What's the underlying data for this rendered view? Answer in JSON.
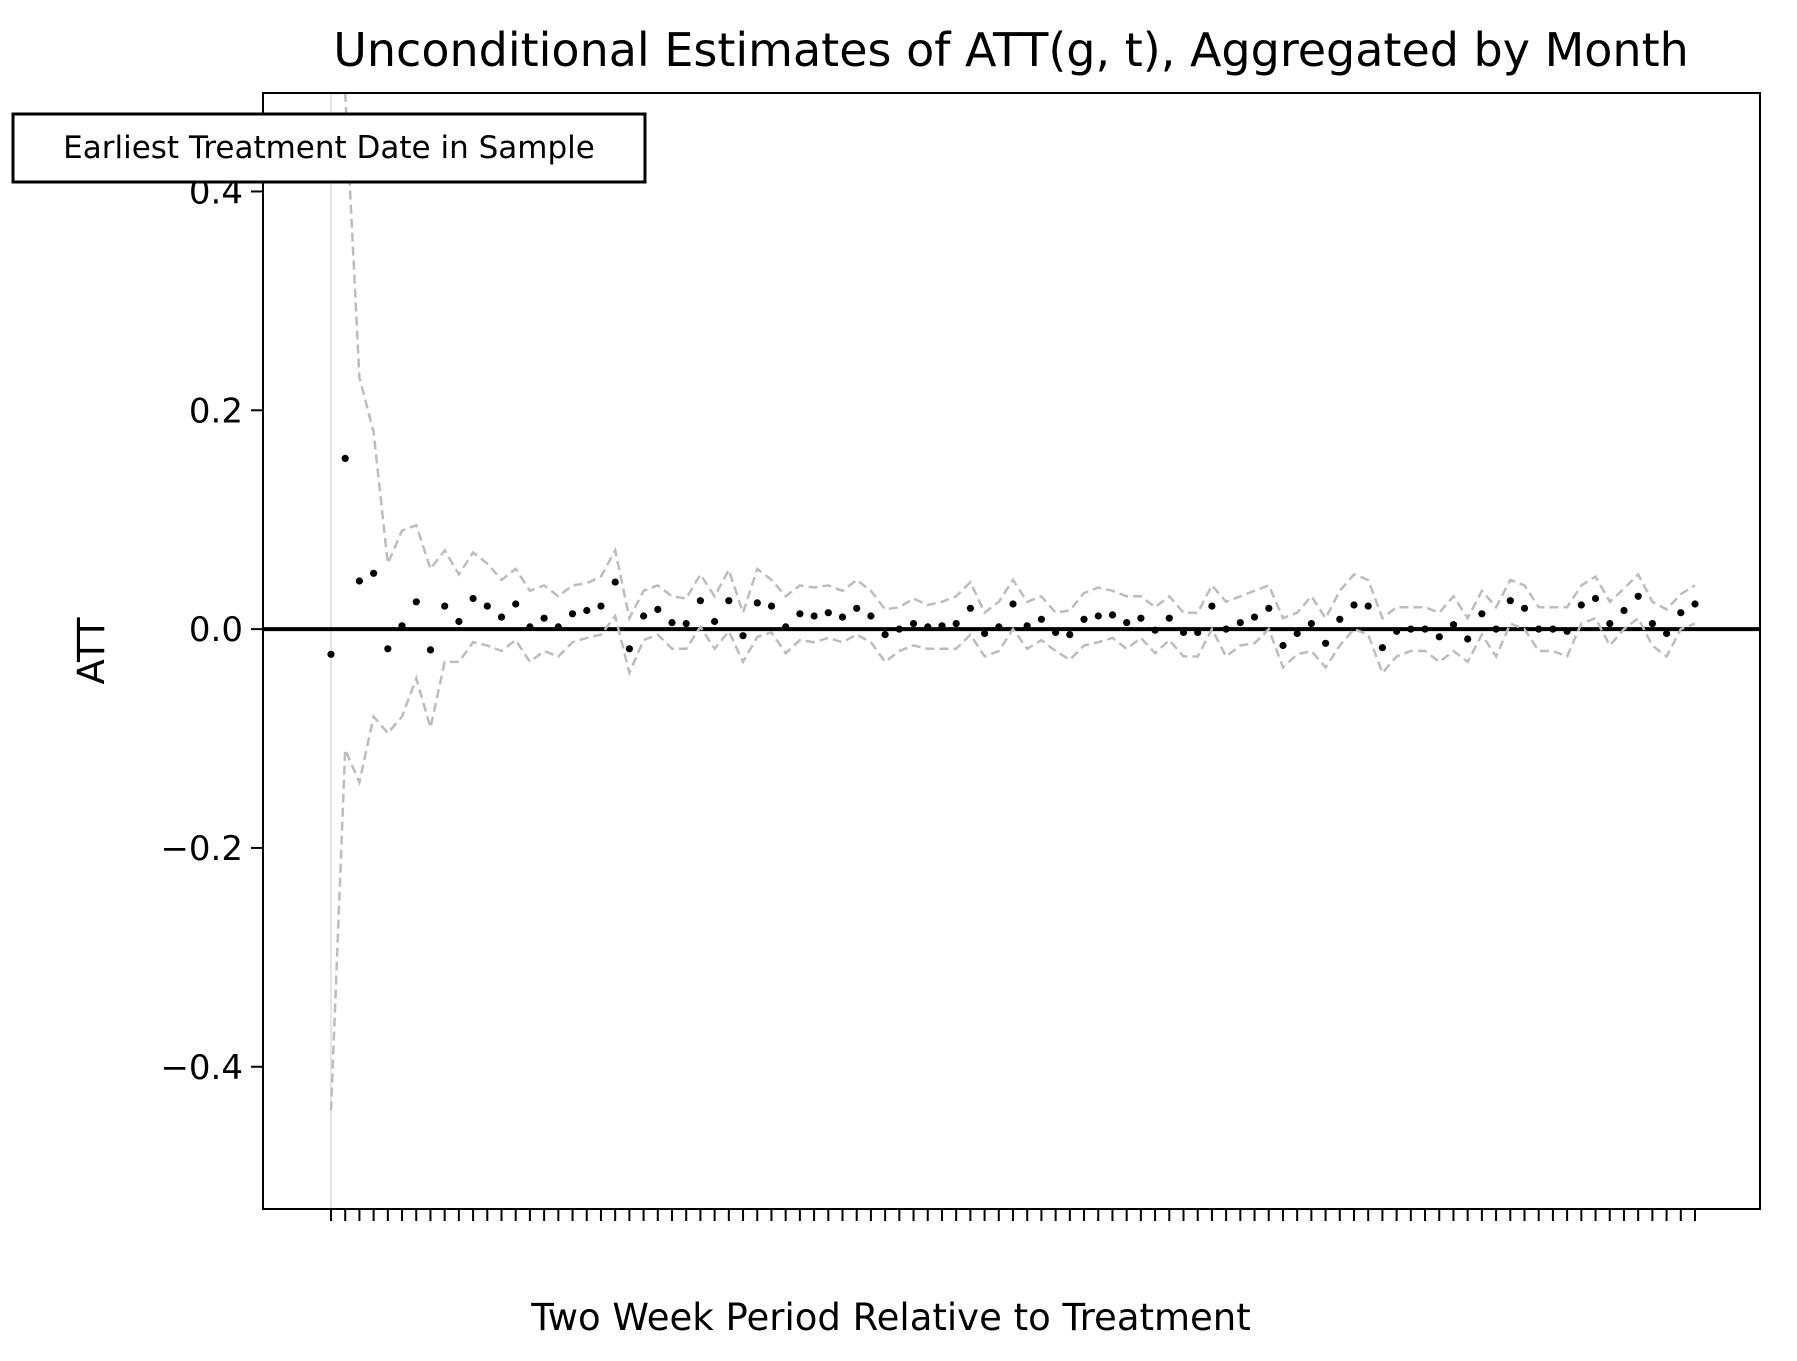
{
  "chart_data": {
    "type": "scatter",
    "title": "Unconditional Estimates of ATT(g, t), Aggregated by Month",
    "xlabel": "Two Week Period Relative to Treatment",
    "ylabel": "ATT",
    "ylim": [
      -0.53,
      0.49
    ],
    "yticks": [
      -0.4,
      -0.2,
      0.0,
      0.2,
      0.4
    ],
    "ytick_labels": [
      "−0.4",
      "−0.2",
      "0.0",
      "0.2",
      "0.4"
    ],
    "grid": false,
    "reference_line_y": 0.0,
    "annotation": "Earliest Treatment Date in Sample",
    "x_index": [
      1,
      2,
      3,
      4,
      5,
      6,
      7,
      8,
      9,
      10,
      11,
      12,
      13,
      14,
      15,
      16,
      17,
      18,
      19,
      20,
      21,
      22,
      23,
      24,
      25,
      26,
      27,
      28,
      29,
      30,
      31,
      32,
      33,
      34,
      35,
      36,
      37,
      38,
      39,
      40,
      41,
      42,
      43,
      44,
      45,
      46,
      47,
      48,
      49,
      50,
      51,
      52,
      53,
      54,
      55,
      56,
      57,
      58,
      59,
      60,
      61,
      62,
      63,
      64,
      65,
      66,
      67,
      68,
      69,
      70,
      71,
      72,
      73,
      74,
      75,
      76,
      77,
      78,
      79,
      80,
      81,
      82,
      83,
      84,
      85,
      86,
      87,
      88,
      89,
      90,
      91,
      92,
      93,
      94,
      95,
      96,
      97
    ],
    "series": [
      {
        "role": "estimate",
        "values": [
          -0.023,
          0.156,
          0.044,
          0.051,
          -0.018,
          0.003,
          0.025,
          -0.019,
          0.021,
          0.007,
          0.028,
          0.021,
          0.011,
          0.023,
          0.002,
          0.01,
          0.002,
          0.014,
          0.017,
          0.021,
          0.043,
          -0.018,
          0.012,
          0.018,
          0.006,
          0.005,
          0.026,
          0.007,
          0.026,
          -0.006,
          0.024,
          0.021,
          0.002,
          0.014,
          0.012,
          0.015,
          0.011,
          0.019,
          0.012,
          -0.005,
          0.0,
          0.005,
          0.002,
          0.003,
          0.005,
          0.019,
          -0.004,
          0.002,
          0.023,
          0.003,
          0.009,
          -0.003,
          -0.005,
          0.009,
          0.012,
          0.013,
          0.006,
          0.01,
          -0.001,
          0.01,
          -0.003,
          -0.003,
          0.021,
          0.0,
          0.006,
          0.011,
          0.019,
          -0.015,
          -0.004,
          0.005,
          -0.013,
          0.009,
          0.022,
          0.021,
          -0.017,
          -0.002,
          0.0,
          0.0,
          -0.007,
          0.004,
          -0.009,
          0.014,
          0.0,
          0.026,
          0.019,
          0.0,
          0.0,
          -0.002,
          0.022,
          0.028,
          0.005,
          0.017,
          0.03,
          0.005,
          -0.004,
          0.015,
          0.023
        ]
      },
      {
        "role": "upper-ci",
        "values": [
          0.49,
          0.49,
          0.23,
          0.18,
          0.06,
          0.09,
          0.095,
          0.055,
          0.072,
          0.05,
          0.07,
          0.06,
          0.045,
          0.055,
          0.035,
          0.04,
          0.03,
          0.04,
          0.042,
          0.048,
          0.072,
          0.01,
          0.035,
          0.04,
          0.03,
          0.028,
          0.05,
          0.03,
          0.054,
          0.015,
          0.055,
          0.045,
          0.03,
          0.04,
          0.038,
          0.04,
          0.035,
          0.045,
          0.035,
          0.018,
          0.02,
          0.028,
          0.022,
          0.025,
          0.03,
          0.043,
          0.015,
          0.025,
          0.045,
          0.025,
          0.03,
          0.015,
          0.017,
          0.033,
          0.038,
          0.035,
          0.03,
          0.03,
          0.02,
          0.03,
          0.015,
          0.015,
          0.04,
          0.025,
          0.03,
          0.035,
          0.04,
          0.01,
          0.015,
          0.03,
          0.01,
          0.035,
          0.05,
          0.045,
          0.01,
          0.02,
          0.02,
          0.02,
          0.015,
          0.03,
          0.01,
          0.035,
          0.02,
          0.045,
          0.04,
          0.02,
          0.02,
          0.02,
          0.04,
          0.048,
          0.025,
          0.037,
          0.05,
          0.025,
          0.018,
          0.032,
          0.04
        ]
      },
      {
        "role": "lower-ci",
        "values": [
          -0.44,
          -0.11,
          -0.14,
          -0.08,
          -0.095,
          -0.08,
          -0.045,
          -0.09,
          -0.03,
          -0.03,
          -0.012,
          -0.015,
          -0.02,
          -0.01,
          -0.03,
          -0.02,
          -0.025,
          -0.012,
          -0.008,
          -0.005,
          0.012,
          -0.04,
          -0.01,
          -0.005,
          -0.018,
          -0.018,
          0.002,
          -0.018,
          -0.002,
          -0.03,
          -0.007,
          -0.003,
          -0.022,
          -0.01,
          -0.012,
          -0.008,
          -0.012,
          -0.005,
          -0.012,
          -0.03,
          -0.02,
          -0.015,
          -0.018,
          -0.018,
          -0.018,
          -0.005,
          -0.025,
          -0.02,
          0.0,
          -0.018,
          -0.01,
          -0.02,
          -0.028,
          -0.015,
          -0.012,
          -0.008,
          -0.018,
          -0.008,
          -0.022,
          -0.01,
          -0.025,
          -0.025,
          0.0,
          -0.025,
          -0.015,
          -0.013,
          0.0,
          -0.035,
          -0.023,
          -0.02,
          -0.035,
          -0.015,
          0.0,
          -0.005,
          -0.04,
          -0.025,
          -0.02,
          -0.02,
          -0.03,
          -0.02,
          -0.03,
          -0.005,
          -0.025,
          0.005,
          0.0,
          -0.02,
          -0.02,
          -0.025,
          0.005,
          0.01,
          -0.015,
          0.0,
          0.01,
          -0.015,
          -0.025,
          0.0,
          0.005
        ]
      }
    ],
    "colors": {
      "estimate": "#000000",
      "ci": "#bdbdbd",
      "zero_line": "#000000",
      "treatment_marker": "#dddddd"
    }
  }
}
